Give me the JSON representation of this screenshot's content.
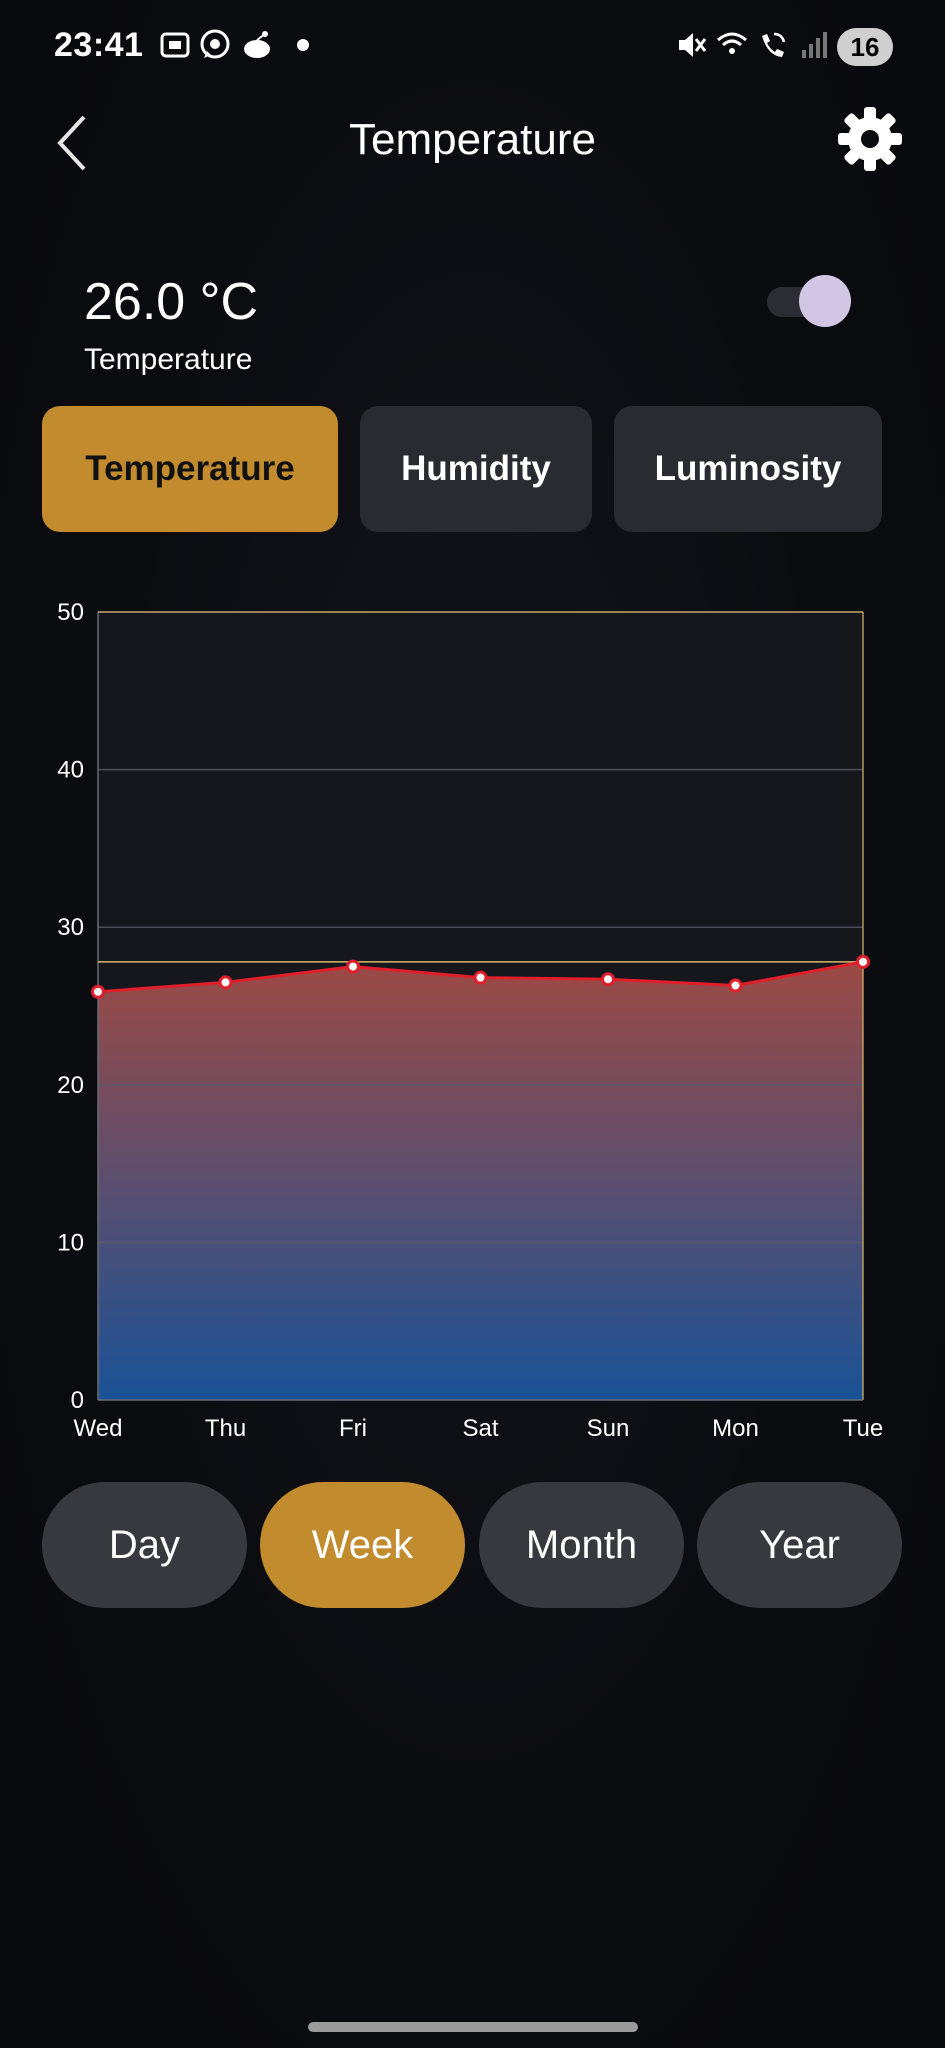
{
  "status_bar": {
    "time": "23:41",
    "battery": "16",
    "icons": [
      "screenshot-icon",
      "whatsapp-icon",
      "reddit-icon",
      "dot-icon",
      "mute-icon",
      "wifi-icon",
      "wifi-calling-icon",
      "signal-icon"
    ]
  },
  "header": {
    "title": "Temperature"
  },
  "reading": {
    "value": "26.0 °C",
    "label": "Temperature",
    "toggle_on": true
  },
  "tabs": [
    {
      "label": "Temperature",
      "active": true
    },
    {
      "label": "Humidity",
      "active": false
    },
    {
      "label": "Luminosity",
      "active": false
    }
  ],
  "chart_data": {
    "type": "area",
    "title": "",
    "xlabel": "",
    "ylabel": "",
    "categories": [
      "Wed",
      "Thu",
      "Fri",
      "Sat",
      "Sun",
      "Mon",
      "Tue"
    ],
    "values": [
      25.9,
      26.5,
      27.5,
      26.8,
      26.7,
      26.3,
      27.8
    ],
    "y_ticks": [
      "0",
      "10",
      "20",
      "30",
      "40",
      "50"
    ],
    "ylim": [
      0,
      50
    ],
    "limit_line": 27.8,
    "grid": true,
    "colors": {
      "line": "#e01f2a",
      "fill_top": "#9c4a45",
      "fill_bottom": "#1a5296",
      "limit": "#d8b96a",
      "grid": "#5a5d66"
    }
  },
  "ranges": [
    {
      "label": "Day",
      "active": false
    },
    {
      "label": "Week",
      "active": true
    },
    {
      "label": "Month",
      "active": false
    },
    {
      "label": "Year",
      "active": false
    }
  ],
  "colors": {
    "accent": "#c18b2e",
    "tab_bg": "#2a2b30",
    "pill_bg": "#38393e"
  }
}
